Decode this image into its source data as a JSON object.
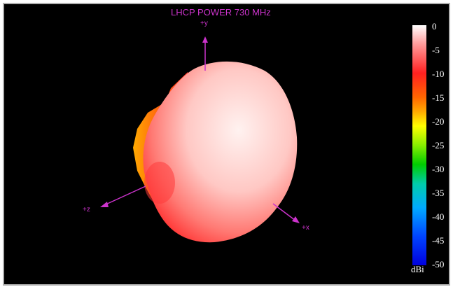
{
  "chart_data": {
    "type": "3d-radiation-pattern",
    "title": "LHCP POWER 730  MHz",
    "axes": [
      "+y",
      "+z",
      "+x"
    ],
    "colorbar": {
      "unit": "dBi",
      "ticks": [
        "0",
        "-5",
        "-10",
        "-15",
        "-20",
        "-25",
        "-30",
        "-35",
        "-40",
        "-45",
        "-50"
      ],
      "range": [
        -50,
        0
      ]
    },
    "colors": {
      "background": "#000000",
      "axis": "#cc33cc",
      "pattern_main": "#ffd8d4",
      "pattern_edge": "#ff3030"
    }
  }
}
